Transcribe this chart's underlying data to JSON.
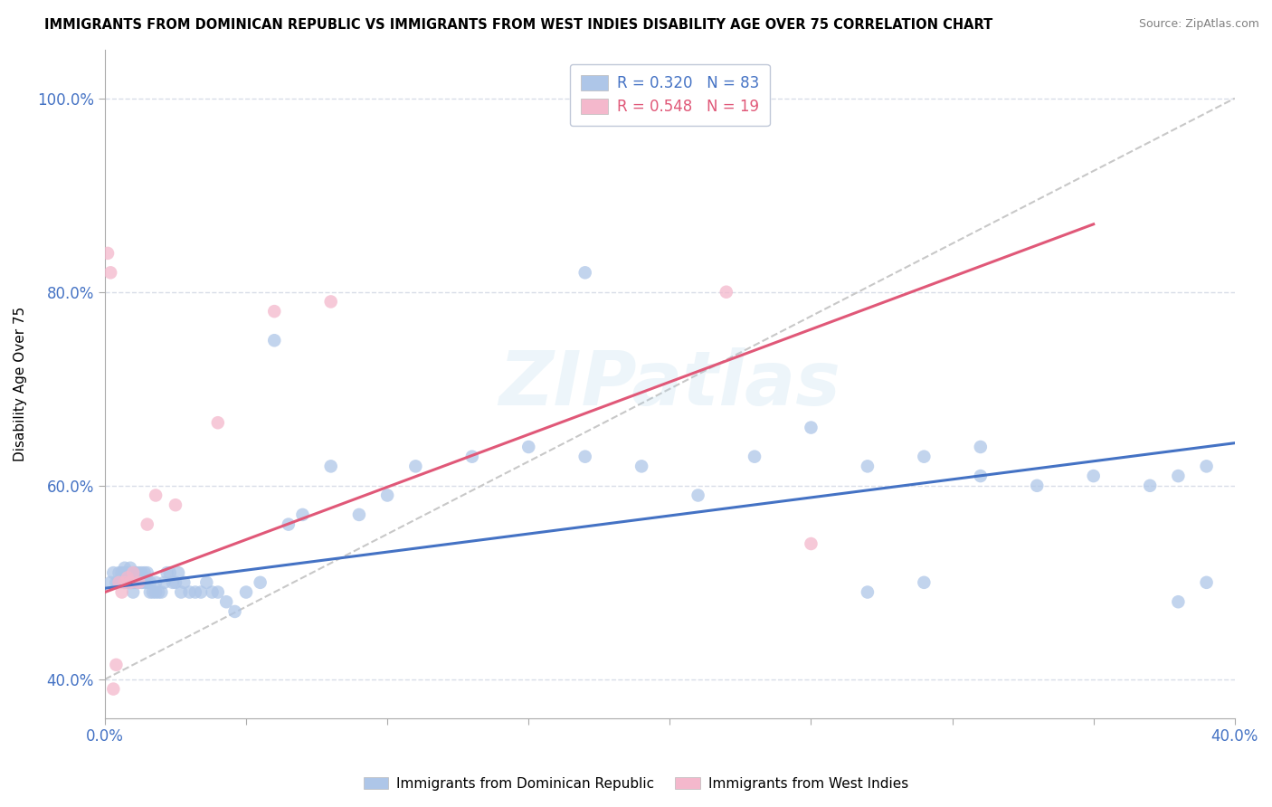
{
  "title": "IMMIGRANTS FROM DOMINICAN REPUBLIC VS IMMIGRANTS FROM WEST INDIES DISABILITY AGE OVER 75 CORRELATION CHART",
  "source": "Source: ZipAtlas.com",
  "ylabel": "Disability Age Over 75",
  "xlabel": "",
  "xlim": [
    0.0,
    0.4
  ],
  "ylim": [
    0.36,
    1.05
  ],
  "xticks": [
    0.0,
    0.05,
    0.1,
    0.15,
    0.2,
    0.25,
    0.3,
    0.35,
    0.4
  ],
  "yticks": [
    0.4,
    0.6,
    0.8,
    1.0
  ],
  "ytick_labels": [
    "40.0%",
    "60.0%",
    "80.0%",
    "100.0%"
  ],
  "xtick_labels": [
    "0.0%",
    "",
    "",
    "",
    "",
    "",
    "",
    "",
    "40.0%"
  ],
  "blue_R": 0.32,
  "blue_N": 83,
  "pink_R": 0.548,
  "pink_N": 19,
  "blue_color": "#aec6e8",
  "pink_color": "#f4b8cc",
  "blue_line_color": "#4472c4",
  "pink_line_color": "#e05878",
  "ref_line_color": "#c8c8c8",
  "grid_color": "#d8dde8",
  "background_color": "#ffffff",
  "watermark": "ZIPatlas",
  "blue_scatter_x": [
    0.002,
    0.003,
    0.004,
    0.005,
    0.005,
    0.006,
    0.006,
    0.007,
    0.007,
    0.007,
    0.008,
    0.008,
    0.008,
    0.009,
    0.009,
    0.009,
    0.01,
    0.01,
    0.01,
    0.01,
    0.011,
    0.011,
    0.012,
    0.012,
    0.013,
    0.013,
    0.014,
    0.014,
    0.015,
    0.015,
    0.016,
    0.016,
    0.017,
    0.018,
    0.018,
    0.019,
    0.02,
    0.021,
    0.022,
    0.023,
    0.024,
    0.025,
    0.026,
    0.027,
    0.028,
    0.03,
    0.032,
    0.034,
    0.036,
    0.038,
    0.04,
    0.043,
    0.046,
    0.05,
    0.055,
    0.06,
    0.065,
    0.07,
    0.08,
    0.09,
    0.1,
    0.11,
    0.13,
    0.15,
    0.17,
    0.19,
    0.21,
    0.23,
    0.25,
    0.27,
    0.29,
    0.31,
    0.33,
    0.35,
    0.37,
    0.38,
    0.39,
    0.27,
    0.29,
    0.31,
    0.38,
    0.39,
    0.17
  ],
  "blue_scatter_y": [
    0.5,
    0.51,
    0.5,
    0.51,
    0.5,
    0.505,
    0.51,
    0.5,
    0.51,
    0.515,
    0.5,
    0.505,
    0.51,
    0.5,
    0.505,
    0.515,
    0.49,
    0.5,
    0.505,
    0.51,
    0.5,
    0.51,
    0.5,
    0.51,
    0.5,
    0.51,
    0.5,
    0.51,
    0.5,
    0.51,
    0.49,
    0.5,
    0.49,
    0.49,
    0.5,
    0.49,
    0.49,
    0.5,
    0.51,
    0.51,
    0.5,
    0.5,
    0.51,
    0.49,
    0.5,
    0.49,
    0.49,
    0.49,
    0.5,
    0.49,
    0.49,
    0.48,
    0.47,
    0.49,
    0.5,
    0.75,
    0.56,
    0.57,
    0.62,
    0.57,
    0.59,
    0.62,
    0.63,
    0.64,
    0.63,
    0.62,
    0.59,
    0.63,
    0.66,
    0.62,
    0.63,
    0.64,
    0.6,
    0.61,
    0.6,
    0.61,
    0.62,
    0.49,
    0.5,
    0.61,
    0.48,
    0.5,
    0.82
  ],
  "pink_scatter_x": [
    0.001,
    0.002,
    0.003,
    0.004,
    0.005,
    0.006,
    0.007,
    0.008,
    0.009,
    0.01,
    0.012,
    0.015,
    0.018,
    0.025,
    0.04,
    0.06,
    0.08,
    0.22,
    0.25
  ],
  "pink_scatter_y": [
    0.84,
    0.82,
    0.39,
    0.415,
    0.5,
    0.49,
    0.5,
    0.505,
    0.5,
    0.51,
    0.5,
    0.56,
    0.59,
    0.58,
    0.665,
    0.78,
    0.79,
    0.8,
    0.54
  ],
  "blue_trend_x": [
    0.0,
    0.4
  ],
  "blue_trend_y": [
    0.494,
    0.644
  ],
  "pink_trend_x": [
    0.0,
    0.35
  ],
  "pink_trend_y": [
    0.49,
    0.87
  ]
}
